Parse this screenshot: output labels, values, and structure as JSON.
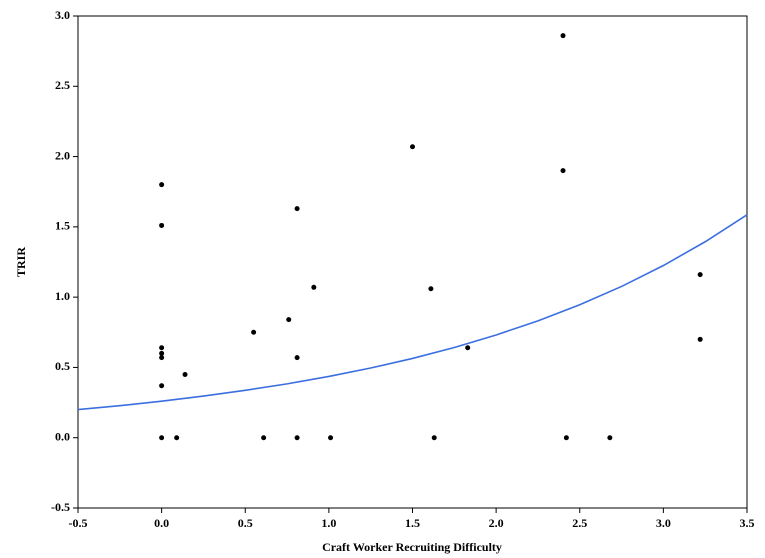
{
  "chart_data": {
    "type": "scatter",
    "xlabel": "Craft Worker Recruiting Difficulty",
    "ylabel": "TRIR",
    "xlim": [
      -0.5,
      3.5
    ],
    "ylim": [
      -0.5,
      3.0
    ],
    "xticks": [
      -0.5,
      {
        "value": 0,
        "label": "0.0"
      },
      0.5,
      {
        "value": 1,
        "label": "1.0"
      },
      1.5,
      {
        "value": 2,
        "label": "2.0"
      },
      2.5,
      {
        "value": 3,
        "label": "3.0"
      },
      3.5
    ],
    "yticks": [
      -0.5,
      {
        "value": 0,
        "label": "0.0"
      },
      0.5,
      {
        "value": 1,
        "label": "1.0"
      },
      1.5,
      {
        "value": 2,
        "label": "2.0"
      },
      2.5,
      {
        "value": 3,
        "label": "3.0"
      }
    ],
    "series": [
      {
        "type": "scatter",
        "color": "#000000",
        "x": [
          2.4,
          1.5,
          0,
          2.4,
          0,
          0.81,
          0.91,
          1.61,
          3.22,
          0.76,
          0.55,
          0,
          0,
          0,
          0.81,
          1.83,
          3.22,
          0.14,
          0,
          0,
          0.09,
          0.61,
          0.81,
          1.01,
          1.63,
          2.42,
          2.68
        ],
        "values": [
          2.86,
          2.07,
          1.8,
          1.9,
          1.51,
          1.63,
          1.07,
          1.06,
          1.16,
          0.84,
          0.75,
          0.64,
          0.6,
          0.57,
          0.57,
          0.64,
          0.7,
          0.45,
          0.37,
          0,
          0,
          0,
          0,
          0,
          0,
          0,
          0
        ]
      },
      {
        "type": "line",
        "color": "#3b6fe0",
        "x": [
          -0.5,
          -0.25,
          0,
          0.25,
          0.5,
          0.75,
          1,
          1.25,
          1.5,
          1.75,
          2,
          2.25,
          2.5,
          2.75,
          3,
          3.25,
          3.5
        ],
        "values": [
          0.2,
          0.228,
          0.26,
          0.296,
          0.337,
          0.383,
          0.436,
          0.496,
          0.564,
          0.642,
          0.731,
          0.831,
          0.946,
          1.076,
          1.225,
          1.394,
          1.586
        ]
      }
    ]
  }
}
